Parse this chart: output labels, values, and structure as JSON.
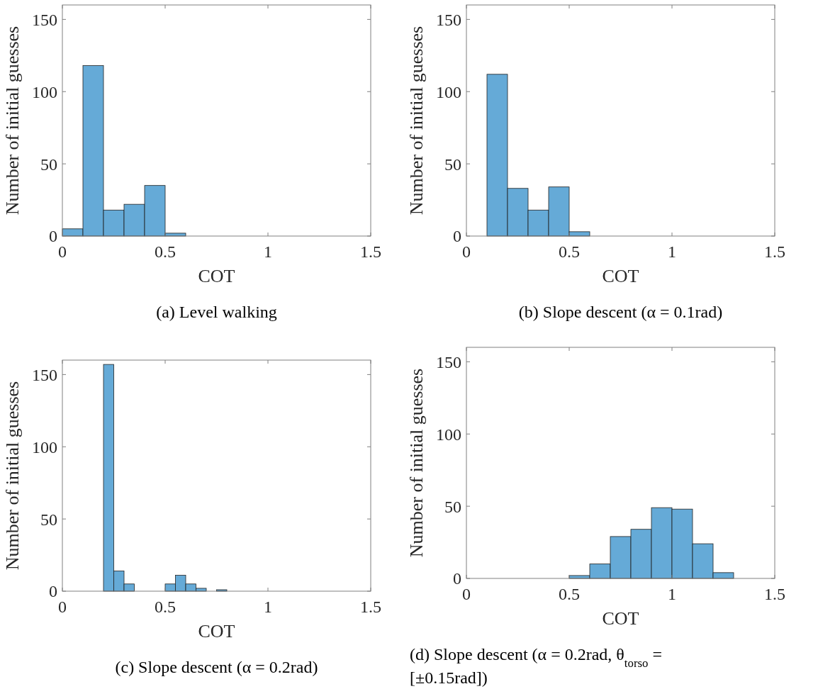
{
  "chart_data": [
    {
      "type": "histogram",
      "title": "(a) Level walking",
      "xlabel": "COT",
      "ylabel": "Number of initial guesses",
      "bins": [
        0,
        0.1,
        0.2,
        0.3,
        0.4,
        0.5,
        0.6
      ],
      "values": [
        5,
        118,
        18,
        22,
        35,
        2
      ],
      "color": "#65aad7",
      "xlim": [
        0,
        1.5
      ],
      "ylim": [
        0,
        160
      ],
      "xticks": [
        0,
        0.5,
        1,
        1.5
      ],
      "yticks": [
        0,
        50,
        100,
        150
      ],
      "grid": false
    },
    {
      "type": "histogram",
      "title": "(b) Slope descent (α = 0.1rad)",
      "xlabel": "COT",
      "ylabel": "Number of initial guesses",
      "bins": [
        0.1,
        0.2,
        0.3,
        0.4,
        0.5,
        0.6
      ],
      "values": [
        112,
        33,
        18,
        34,
        3
      ],
      "color": "#65aad7",
      "xlim": [
        0,
        1.5
      ],
      "ylim": [
        0,
        160
      ],
      "xticks": [
        0,
        0.5,
        1,
        1.5
      ],
      "yticks": [
        0,
        50,
        100,
        150
      ],
      "grid": false
    },
    {
      "type": "histogram",
      "title": "(c) Slope descent (α = 0.2rad)",
      "xlabel": "COT",
      "ylabel": "Number of initial guesses",
      "bins": [
        0.2,
        0.25,
        0.3,
        0.35,
        0.4,
        0.45,
        0.5,
        0.55,
        0.6,
        0.65,
        0.7,
        0.75,
        0.8
      ],
      "values": [
        157,
        14,
        5,
        0,
        0,
        0,
        5,
        11,
        5,
        2,
        0,
        1
      ],
      "color": "#65aad7",
      "xlim": [
        0,
        1.5
      ],
      "ylim": [
        0,
        160
      ],
      "xticks": [
        0,
        0.5,
        1,
        1.5
      ],
      "yticks": [
        0,
        50,
        100,
        150
      ],
      "grid": false
    },
    {
      "type": "histogram",
      "title": "(d) Slope descent (α = 0.2rad, θ$_{torso}$ = [±0.15rad])",
      "xlabel": "COT",
      "ylabel": "Number of initial guesses",
      "bins": [
        0.5,
        0.6,
        0.7,
        0.8,
        0.9,
        1.0,
        1.1,
        1.2,
        1.3
      ],
      "values": [
        2,
        10,
        29,
        34,
        49,
        48,
        24,
        4
      ],
      "color": "#65aad7",
      "xlim": [
        0,
        1.5
      ],
      "ylim": [
        0,
        160
      ],
      "xticks": [
        0,
        0.5,
        1,
        1.5
      ],
      "yticks": [
        0,
        50,
        100,
        150
      ],
      "grid": false
    }
  ]
}
